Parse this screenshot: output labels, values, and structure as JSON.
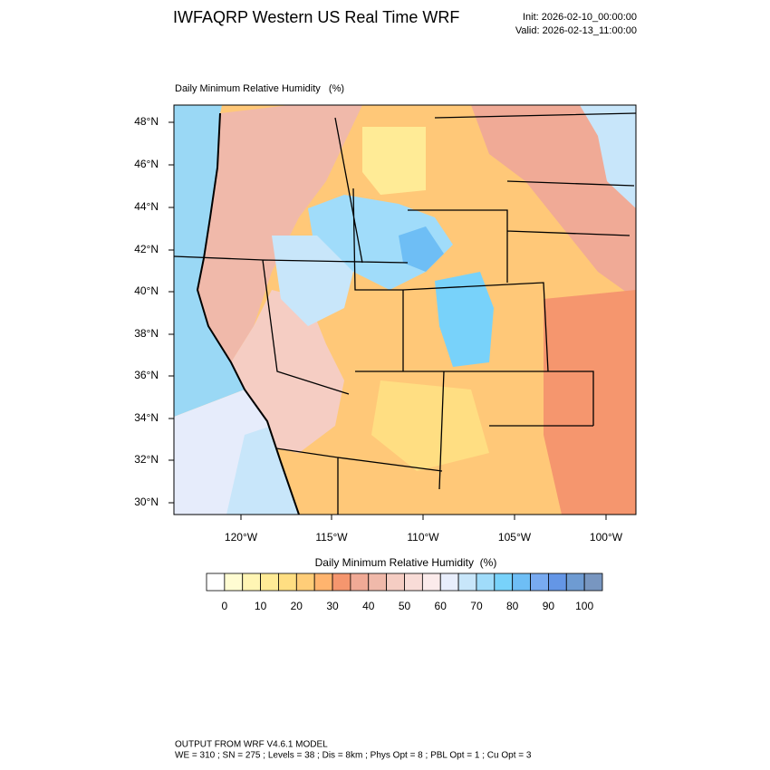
{
  "header": {
    "title": "IWFAQRP Western US Real Time WRF",
    "init": "Init: 2026-02-10_00:00:00",
    "valid": "Valid: 2026-02-13_11:00:00"
  },
  "map": {
    "title": "Daily Minimum Relative Humidity   (%)",
    "lat_labels": [
      "48°N",
      "46°N",
      "44°N",
      "42°N",
      "40°N",
      "38°N",
      "36°N",
      "34°N",
      "32°N",
      "30°N"
    ],
    "lon_labels": [
      "120°W",
      "115°W",
      "110°W",
      "105°W",
      "100°W"
    ]
  },
  "colorbar": {
    "title": "Daily Minimum Relative Humidity  (%)",
    "labels": [
      0,
      10,
      20,
      30,
      40,
      50,
      60,
      70,
      80,
      90,
      100
    ],
    "colors": [
      "#ffffff",
      "#fffcd2",
      "#fff5b4",
      "#ffeb96",
      "#ffde82",
      "#ffcd78",
      "#ffb46e",
      "#f5966e",
      "#f0aa96",
      "#f0b9aa",
      "#f5cdc3",
      "#f8dcd7",
      "#fbebeb",
      "#e8eefc",
      "#c8e6fa",
      "#a0dcfa",
      "#78d2fa",
      "#6ebef5",
      "#78aaf0",
      "#6496e6",
      "#6e9bd2",
      "#7896c0"
    ]
  },
  "footer": {
    "line1": "OUTPUT FROM WRF V4.6.1 MODEL",
    "line2": "WE = 310 ; SN = 275 ; Levels = 38 ; Dis = 8km ; Phys Opt = 8 ; PBL Opt = 1 ; Cu Opt = 3"
  }
}
